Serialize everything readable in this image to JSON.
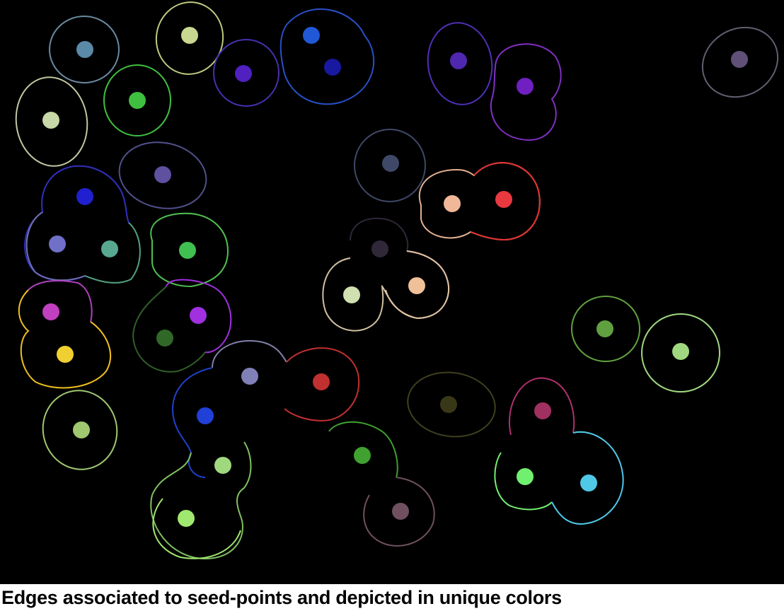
{
  "caption": "Edges associated to seed-points and depicted in unique colors",
  "colors": {
    "background": "#000000",
    "caption_text": "#000000",
    "page": "#ffffff"
  },
  "seed_points": [
    {
      "color": "#5a8aa8"
    },
    {
      "color": "#c8d890"
    },
    {
      "color": "#5020c0"
    },
    {
      "color": "#2058d8"
    },
    {
      "color": "#1818a0"
    },
    {
      "color": "#5028b0"
    },
    {
      "color": "#7020c0"
    },
    {
      "color": "#605078"
    },
    {
      "color": "#c8d8a8"
    },
    {
      "color": "#40c040"
    },
    {
      "color": "#6050a0"
    },
    {
      "color": "#404868"
    },
    {
      "color": "#2020d0"
    },
    {
      "color": "#7070c8"
    },
    {
      "color": "#58a890"
    },
    {
      "color": "#40c050"
    },
    {
      "color": "#f0b898"
    },
    {
      "color": "#e83840"
    },
    {
      "color": "#302838"
    },
    {
      "color": "#d0e0b0"
    },
    {
      "color": "#f0c098"
    },
    {
      "color": "#c040c0"
    },
    {
      "color": "#a030e0"
    },
    {
      "color": "#f0d030"
    },
    {
      "color": "#306828"
    },
    {
      "color": "#60a040"
    },
    {
      "color": "#a0d880"
    },
    {
      "color": "#8080b8"
    },
    {
      "color": "#c03030"
    },
    {
      "color": "#2040d8"
    },
    {
      "color": "#383818"
    },
    {
      "color": "#a03060"
    },
    {
      "color": "#a0c870"
    },
    {
      "color": "#a0d880"
    },
    {
      "color": "#40a030"
    },
    {
      "color": "#70f070"
    },
    {
      "color": "#50c8e8"
    },
    {
      "color": "#a0e870"
    },
    {
      "color": "#705060"
    }
  ],
  "edges": [
    {
      "color": "#6a8aa0"
    },
    {
      "color": "#c0c880"
    },
    {
      "color": "#4830b0"
    },
    {
      "color": "#2850c8"
    },
    {
      "color": "#5030b8"
    },
    {
      "color": "#8030c0"
    },
    {
      "color": "#606070"
    },
    {
      "color": "#c0c8a0"
    },
    {
      "color": "#40c040"
    },
    {
      "color": "#50508a"
    },
    {
      "color": "#404868"
    },
    {
      "color": "#3030c0"
    },
    {
      "color": "#7070b0"
    },
    {
      "color": "#50a070"
    },
    {
      "color": "#50c050"
    },
    {
      "color": "#e0b090"
    },
    {
      "color": "#e03030"
    },
    {
      "color": "#302838"
    },
    {
      "color": "#d0c0a0"
    },
    {
      "color": "#e0c0a0"
    },
    {
      "color": "#b040c0"
    },
    {
      "color": "#a030e0"
    },
    {
      "color": "#f0c020"
    },
    {
      "color": "#306028"
    },
    {
      "color": "#60a040"
    },
    {
      "color": "#a0d880"
    },
    {
      "color": "#8080a8"
    },
    {
      "color": "#c03030"
    },
    {
      "color": "#2040c8"
    },
    {
      "color": "#404020"
    },
    {
      "color": "#b03070"
    },
    {
      "color": "#a0c870"
    },
    {
      "color": "#80c060"
    },
    {
      "color": "#40a030"
    },
    {
      "color": "#70f070"
    },
    {
      "color": "#50c8e8"
    },
    {
      "color": "#a0e870"
    },
    {
      "color": "#705060"
    }
  ]
}
